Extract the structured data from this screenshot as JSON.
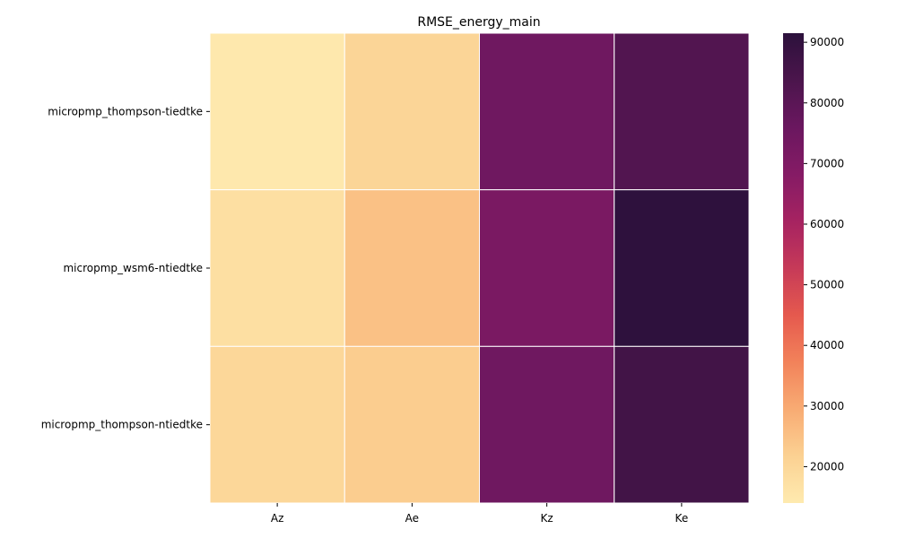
{
  "chart_data": {
    "type": "heatmap",
    "title": "RMSE_energy_main",
    "xlabel": "",
    "ylabel": "",
    "x_categories": [
      "Az",
      "Ae",
      "Kz",
      "Ke"
    ],
    "y_categories": [
      "micropmp_thompson-tiedtke",
      "micropmp_wsm6-ntiedtke",
      "micropmp_thompson-ntiedtke"
    ],
    "values": [
      [
        14500,
        20500,
        74500,
        82000
      ],
      [
        17500,
        25000,
        71500,
        91000
      ],
      [
        20000,
        22500,
        74500,
        86000
      ]
    ],
    "colorbar": {
      "min": 14000,
      "max": 91500,
      "ticks": [
        20000,
        30000,
        40000,
        50000,
        60000,
        70000,
        80000,
        90000
      ],
      "colormap": "magma_r",
      "low_color": "#feeaaf",
      "high_color": "#2c113c"
    },
    "grid": false
  }
}
